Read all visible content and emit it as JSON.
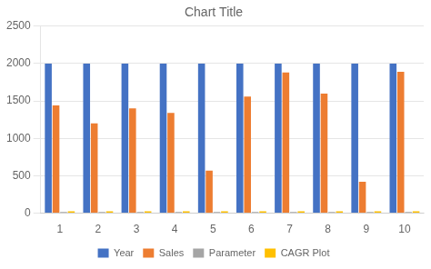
{
  "chart_data": {
    "type": "bar",
    "title": "Chart Title",
    "categories": [
      "1",
      "2",
      "3",
      "4",
      "5",
      "6",
      "7",
      "8",
      "9",
      "10"
    ],
    "series": [
      {
        "name": "Year",
        "color": "#4472C4",
        "values": [
          2000,
          2000,
          2000,
          2000,
          2000,
          2000,
          2000,
          2000,
          2000,
          2000
        ]
      },
      {
        "name": "Sales",
        "color": "#ED7D31",
        "values": [
          1440,
          1200,
          1400,
          1340,
          570,
          1560,
          1880,
          1600,
          420,
          1890
        ]
      },
      {
        "name": "Parameter",
        "color": "#A5A5A5",
        "values": [
          15,
          15,
          15,
          15,
          15,
          15,
          15,
          15,
          15,
          15
        ]
      },
      {
        "name": "CAGR Plot",
        "color": "#FFC000",
        "values": [
          25,
          25,
          25,
          25,
          25,
          25,
          25,
          25,
          25,
          25
        ]
      }
    ],
    "ylim": [
      0,
      2500
    ],
    "yticks": [
      0,
      500,
      1000,
      1500,
      2000,
      2500
    ],
    "grid": true,
    "legend": "bottom"
  }
}
